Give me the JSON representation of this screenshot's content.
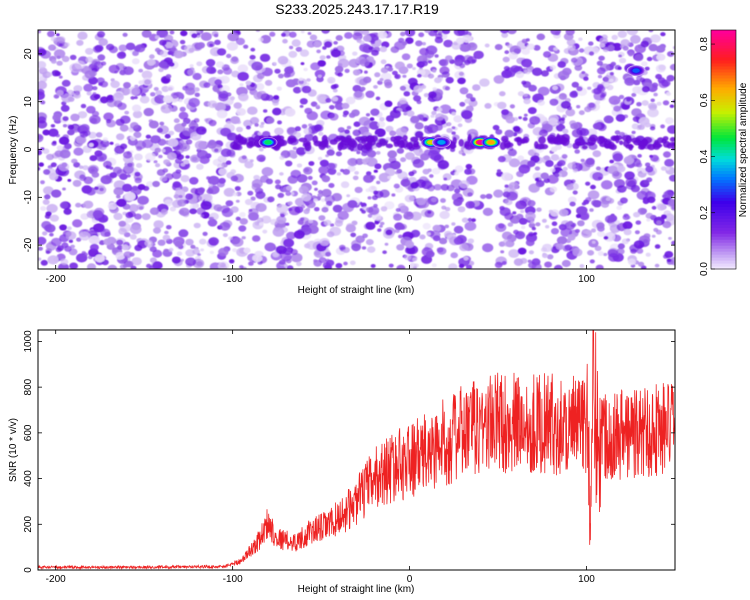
{
  "title": "S233.2025.243.17.17.R19",
  "chart_data": [
    {
      "type": "heatmap",
      "name": "spectrogram",
      "xlabel": "Height of straight line (km)",
      "ylabel": "Frequency (Hz)",
      "xlim": [
        -210,
        150
      ],
      "ylim": [
        -25,
        25
      ],
      "xticks": [
        -200,
        -100,
        0,
        100
      ],
      "yticks": [
        20,
        10,
        0,
        -10,
        -20
      ],
      "colorbar_label": "Normalized spectral amplitude",
      "colorbar_ticks": [
        "0.0",
        "0.2",
        "0.4",
        "0.6",
        "0.8"
      ],
      "colorbar_range": [
        0,
        0.85
      ],
      "hotspots": [
        {
          "x": -80,
          "y": 1.5,
          "v": 0.45
        },
        {
          "x": 12,
          "y": 1.5,
          "v": 0.6
        },
        {
          "x": 18,
          "y": 1.5,
          "v": 0.35
        },
        {
          "x": 40,
          "y": 1.5,
          "v": 0.85
        },
        {
          "x": 46,
          "y": 1.5,
          "v": 0.65
        },
        {
          "x": 128,
          "y": 16.5,
          "v": 0.3
        }
      ]
    },
    {
      "type": "line",
      "name": "snr",
      "xlabel": "Height of straight line (km)",
      "ylabel": "SNR (10 * v/v)",
      "xlim": [
        -210,
        150
      ],
      "ylim": [
        0,
        1050
      ],
      "xticks": [
        -200,
        -100,
        0,
        100
      ],
      "yticks": [
        0,
        200,
        400,
        600,
        800,
        1000
      ],
      "series": [
        {
          "name": "SNR",
          "color": "#ee2222",
          "x": [
            -210,
            -150,
            -105,
            -95,
            -85,
            -80,
            -75,
            -65,
            -55,
            -45,
            -35,
            -30,
            -25,
            -20,
            -10,
            0,
            10,
            20,
            30,
            40,
            50,
            60,
            70,
            80,
            90,
            98,
            100,
            102,
            104,
            106,
            110,
            120,
            130,
            140,
            150
          ],
          "values": [
            12,
            12,
            15,
            40,
            130,
            210,
            140,
            120,
            170,
            200,
            260,
            300,
            350,
            400,
            450,
            480,
            510,
            560,
            600,
            630,
            650,
            640,
            645,
            640,
            630,
            630,
            900,
            200,
            850,
            600,
            600,
            600,
            600,
            620,
            620
          ]
        }
      ]
    }
  ]
}
